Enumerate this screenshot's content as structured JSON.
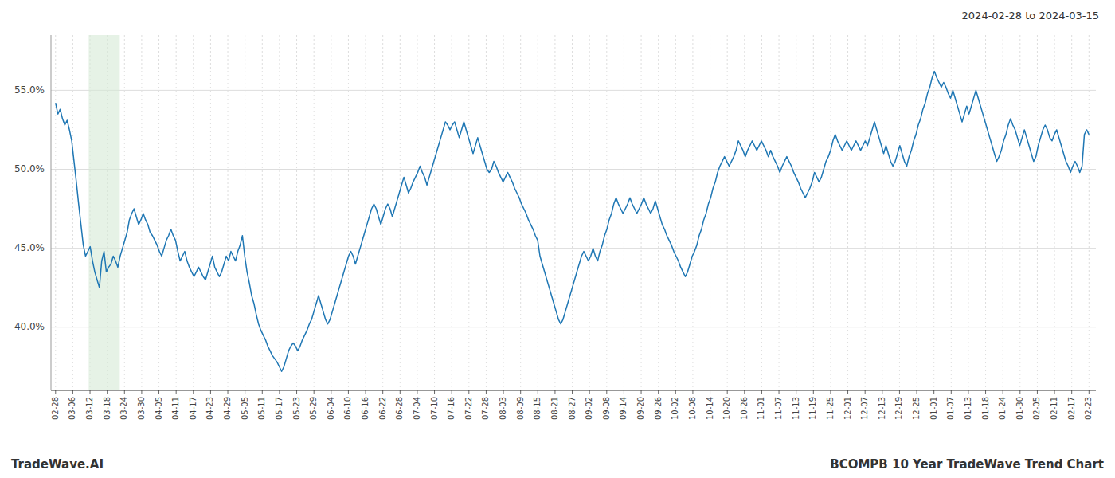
{
  "chart_data": {
    "type": "line",
    "title": "BCOMPB 10 Year TradeWave Trend Chart",
    "subtitle": "2024-02-28 to 2024-03-15",
    "annotation": "TradeWave.AI",
    "color": "#1f77b4",
    "grid": true,
    "highlight": {
      "from": 14.368,
      "to": 27.838,
      "color": "#d6ead6"
    },
    "ylim": [
      36.0,
      58.5
    ],
    "yticks": [
      {
        "value": 40.0,
        "label": "40.0%"
      },
      {
        "value": 45.0,
        "label": "45.0%"
      },
      {
        "value": 50.0,
        "label": "50.0%"
      },
      {
        "value": 55.0,
        "label": "55.0%"
      }
    ],
    "xlim": [
      -2,
      451
    ],
    "xticks": [
      {
        "value": 0,
        "label": "02-28"
      },
      {
        "value": 7.466666666666667,
        "label": "03-06"
      },
      {
        "value": 14.933333333333334,
        "label": "03-12"
      },
      {
        "value": 22.4,
        "label": "03-18"
      },
      {
        "value": 29.866666666666667,
        "label": "03-24"
      },
      {
        "value": 37.333333333333336,
        "label": "03-30"
      },
      {
        "value": 44.8,
        "label": "04-05"
      },
      {
        "value": 52.266666666666666,
        "label": "04-11"
      },
      {
        "value": 59.733333333333334,
        "label": "04-17"
      },
      {
        "value": 67.2,
        "label": "04-23"
      },
      {
        "value": 74.66666666666667,
        "label": "04-29"
      },
      {
        "value": 82.13333333333334,
        "label": "05-05"
      },
      {
        "value": 89.6,
        "label": "05-11"
      },
      {
        "value": 97.06666666666666,
        "label": "05-17"
      },
      {
        "value": 104.53333333333333,
        "label": "05-23"
      },
      {
        "value": 112,
        "label": "05-29"
      },
      {
        "value": 119.46666666666667,
        "label": "06-04"
      },
      {
        "value": 126.93333333333334,
        "label": "06-10"
      },
      {
        "value": 134.4,
        "label": "06-16"
      },
      {
        "value": 141.86666666666667,
        "label": "06-22"
      },
      {
        "value": 149.33333333333334,
        "label": "06-28"
      },
      {
        "value": 156.8,
        "label": "07-04"
      },
      {
        "value": 164.26666666666668,
        "label": "07-10"
      },
      {
        "value": 171.73333333333332,
        "label": "07-16"
      },
      {
        "value": 179.2,
        "label": "07-22"
      },
      {
        "value": 186.66666666666666,
        "label": "07-28"
      },
      {
        "value": 194.13333333333333,
        "label": "08-03"
      },
      {
        "value": 201.6,
        "label": "08-09"
      },
      {
        "value": 209.06666666666666,
        "label": "08-15"
      },
      {
        "value": 216.53333333333333,
        "label": "08-21"
      },
      {
        "value": 224,
        "label": "08-27"
      },
      {
        "value": 231.46666666666667,
        "label": "09-02"
      },
      {
        "value": 238.93333333333334,
        "label": "09-08"
      },
      {
        "value": 246.4,
        "label": "09-14"
      },
      {
        "value": 253.86666666666667,
        "label": "09-20"
      },
      {
        "value": 261.3333333333333,
        "label": "09-26"
      },
      {
        "value": 268.8,
        "label": "10-02"
      },
      {
        "value": 276.26666666666665,
        "label": "10-08"
      },
      {
        "value": 283.73333333333335,
        "label": "10-14"
      },
      {
        "value": 291.2,
        "label": "10-20"
      },
      {
        "value": 298.6666666666667,
        "label": "10-26"
      },
      {
        "value": 306.1333333333333,
        "label": "11-01"
      },
      {
        "value": 313.6,
        "label": "11-07"
      },
      {
        "value": 321.06666666666666,
        "label": "11-13"
      },
      {
        "value": 328.53333333333336,
        "label": "11-19"
      },
      {
        "value": 336,
        "label": "11-25"
      },
      {
        "value": 343.4666666666667,
        "label": "12-01"
      },
      {
        "value": 350.93333333333334,
        "label": "12-07"
      },
      {
        "value": 358.4,
        "label": "12-13"
      },
      {
        "value": 365.8666666666667,
        "label": "12-19"
      },
      {
        "value": 373.3333333333333,
        "label": "12-25"
      },
      {
        "value": 380.8,
        "label": "01-01"
      },
      {
        "value": 388.26666666666665,
        "label": "01-07"
      },
      {
        "value": 395.73333333333335,
        "label": "01-13"
      },
      {
        "value": 403.2,
        "label": "01-18"
      },
      {
        "value": 410.6666666666667,
        "label": "01-24"
      },
      {
        "value": 418.1333333333333,
        "label": "01-30"
      },
      {
        "value": 425.6,
        "label": "02-05"
      },
      {
        "value": 433.06666666666666,
        "label": "02-11"
      },
      {
        "value": 440.53333333333336,
        "label": "02-17"
      },
      {
        "value": 448,
        "label": "02-23"
      }
    ],
    "values": [
      54.2,
      53.5,
      53.8,
      53.2,
      52.8,
      53.1,
      52.5,
      51.8,
      50.5,
      49.2,
      47.8,
      46.5,
      45.2,
      44.5,
      44.8,
      45.1,
      44.2,
      43.5,
      43.0,
      42.5,
      44.2,
      44.8,
      43.5,
      43.8,
      44.0,
      44.5,
      44.2,
      43.8,
      44.5,
      45.0,
      45.5,
      46.0,
      46.8,
      47.2,
      47.5,
      47.0,
      46.5,
      46.8,
      47.2,
      46.8,
      46.5,
      46.0,
      45.8,
      45.5,
      45.2,
      44.8,
      44.5,
      45.0,
      45.5,
      45.8,
      46.2,
      45.8,
      45.5,
      44.8,
      44.2,
      44.5,
      44.8,
      44.2,
      43.8,
      43.5,
      43.2,
      43.5,
      43.8,
      43.5,
      43.2,
      43.0,
      43.5,
      44.0,
      44.5,
      43.8,
      43.5,
      43.2,
      43.5,
      44.0,
      44.5,
      44.2,
      44.8,
      44.5,
      44.2,
      44.8,
      45.2,
      45.8,
      44.5,
      43.5,
      42.8,
      42.0,
      41.5,
      40.8,
      40.2,
      39.8,
      39.5,
      39.2,
      38.8,
      38.5,
      38.2,
      38.0,
      37.8,
      37.5,
      37.2,
      37.5,
      38.0,
      38.5,
      38.8,
      39.0,
      38.8,
      38.5,
      38.8,
      39.2,
      39.5,
      39.8,
      40.2,
      40.5,
      41.0,
      41.5,
      42.0,
      41.5,
      41.0,
      40.5,
      40.2,
      40.5,
      41.0,
      41.5,
      42.0,
      42.5,
      43.0,
      43.5,
      44.0,
      44.5,
      44.8,
      44.5,
      44.0,
      44.5,
      45.0,
      45.5,
      46.0,
      46.5,
      47.0,
      47.5,
      47.8,
      47.5,
      47.0,
      46.5,
      47.0,
      47.5,
      47.8,
      47.5,
      47.0,
      47.5,
      48.0,
      48.5,
      49.0,
      49.5,
      49.0,
      48.5,
      48.8,
      49.2,
      49.5,
      49.8,
      50.2,
      49.8,
      49.5,
      49.0,
      49.5,
      50.0,
      50.5,
      51.0,
      51.5,
      52.0,
      52.5,
      53.0,
      52.8,
      52.5,
      52.8,
      53.0,
      52.5,
      52.0,
      52.5,
      53.0,
      52.5,
      52.0,
      51.5,
      51.0,
      51.5,
      52.0,
      51.5,
      51.0,
      50.5,
      50.0,
      49.8,
      50.0,
      50.5,
      50.2,
      49.8,
      49.5,
      49.2,
      49.5,
      49.8,
      49.5,
      49.2,
      48.8,
      48.5,
      48.2,
      47.8,
      47.5,
      47.2,
      46.8,
      46.5,
      46.2,
      45.8,
      45.5,
      44.5,
      44.0,
      43.5,
      43.0,
      42.5,
      42.0,
      41.5,
      41.0,
      40.5,
      40.2,
      40.5,
      41.0,
      41.5,
      42.0,
      42.5,
      43.0,
      43.5,
      44.0,
      44.5,
      44.8,
      44.5,
      44.2,
      44.5,
      45.0,
      44.5,
      44.2,
      44.8,
      45.2,
      45.8,
      46.2,
      46.8,
      47.2,
      47.8,
      48.2,
      47.8,
      47.5,
      47.2,
      47.5,
      47.8,
      48.2,
      47.8,
      47.5,
      47.2,
      47.5,
      47.8,
      48.2,
      47.8,
      47.5,
      47.2,
      47.5,
      48.0,
      47.5,
      47.0,
      46.5,
      46.2,
      45.8,
      45.5,
      45.2,
      44.8,
      44.5,
      44.2,
      43.8,
      43.5,
      43.2,
      43.5,
      44.0,
      44.5,
      44.8,
      45.2,
      45.8,
      46.2,
      46.8,
      47.2,
      47.8,
      48.2,
      48.8,
      49.2,
      49.8,
      50.2,
      50.5,
      50.8,
      50.5,
      50.2,
      50.5,
      50.8,
      51.2,
      51.8,
      51.5,
      51.2,
      50.8,
      51.2,
      51.5,
      51.8,
      51.5,
      51.2,
      51.5,
      51.8,
      51.5,
      51.2,
      50.8,
      51.2,
      50.8,
      50.5,
      50.2,
      49.8,
      50.2,
      50.5,
      50.8,
      50.5,
      50.2,
      49.8,
      49.5,
      49.2,
      48.8,
      48.5,
      48.2,
      48.5,
      48.8,
      49.2,
      49.8,
      49.5,
      49.2,
      49.5,
      50.0,
      50.5,
      50.8,
      51.2,
      51.8,
      52.2,
      51.8,
      51.5,
      51.2,
      51.5,
      51.8,
      51.5,
      51.2,
      51.5,
      51.8,
      51.5,
      51.2,
      51.5,
      51.8,
      51.5,
      52.0,
      52.5,
      53.0,
      52.5,
      52.0,
      51.5,
      51.0,
      51.5,
      51.0,
      50.5,
      50.2,
      50.5,
      51.0,
      51.5,
      51.0,
      50.5,
      50.2,
      50.8,
      51.2,
      51.8,
      52.2,
      52.8,
      53.2,
      53.8,
      54.2,
      54.8,
      55.2,
      55.8,
      56.2,
      55.8,
      55.5,
      55.2,
      55.5,
      55.2,
      54.8,
      54.5,
      55.0,
      54.5,
      54.0,
      53.5,
      53.0,
      53.5,
      54.0,
      53.5,
      54.0,
      54.5,
      55.0,
      54.5,
      54.0,
      53.5,
      53.0,
      52.5,
      52.0,
      51.5,
      51.0,
      50.5,
      50.8,
      51.2,
      51.8,
      52.2,
      52.8,
      53.2,
      52.8,
      52.5,
      52.0,
      51.5,
      52.0,
      52.5,
      52.0,
      51.5,
      51.0,
      50.5,
      50.8,
      51.5,
      52.0,
      52.5,
      52.8,
      52.5,
      52.0,
      51.8,
      52.2,
      52.5,
      52.0,
      51.5,
      51.0,
      50.5,
      50.2,
      49.8,
      50.2,
      50.5,
      50.2,
      49.8,
      50.2,
      52.2,
      52.5,
      52.2
    ]
  }
}
